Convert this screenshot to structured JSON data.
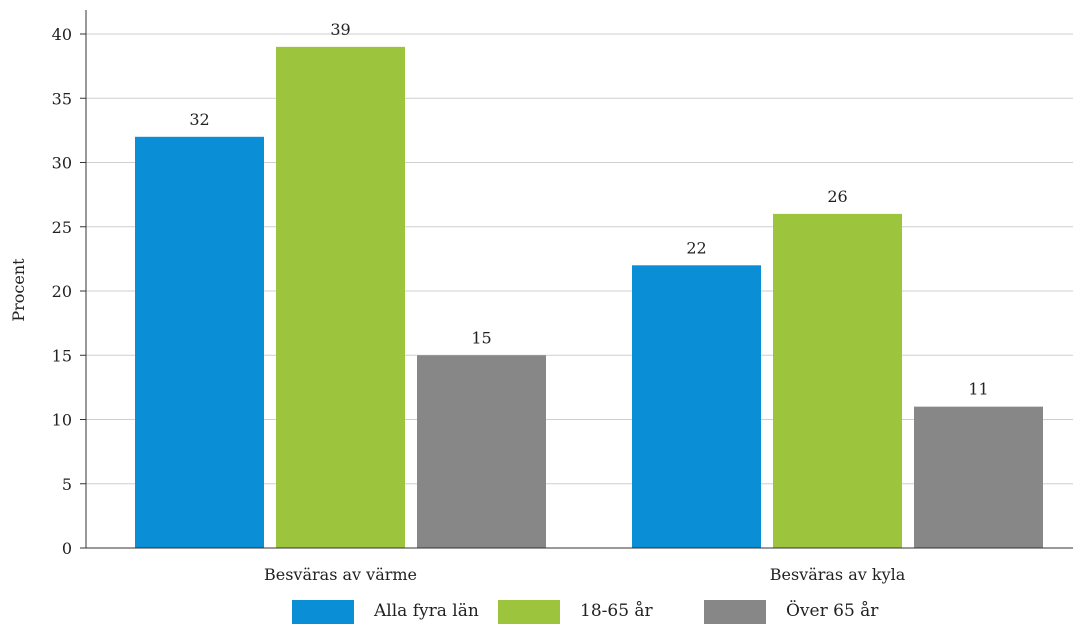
{
  "chart_data": {
    "type": "bar",
    "categories": [
      "Besväras av värme",
      "Besväras av kyla"
    ],
    "series": [
      {
        "name": "Alla fyra län",
        "values": [
          32,
          22
        ],
        "value_labels": [
          "32",
          "22"
        ],
        "color": "#0a8ed6"
      },
      {
        "name": "18-65 år",
        "values": [
          39,
          26
        ],
        "value_labels": [
          "39",
          "26"
        ],
        "color": "#9cc43c"
      },
      {
        "name": "Över 65 år",
        "values": [
          15,
          11
        ],
        "value_labels": [
          "15",
          "11"
        ],
        "color": "#878787"
      }
    ],
    "ylabel": "Procent",
    "xlabel": "",
    "ylim": [
      0,
      40
    ],
    "yticks": [
      0,
      5,
      10,
      15,
      20,
      25,
      30,
      35,
      40
    ],
    "grid": true,
    "legend_position": "bottom"
  }
}
